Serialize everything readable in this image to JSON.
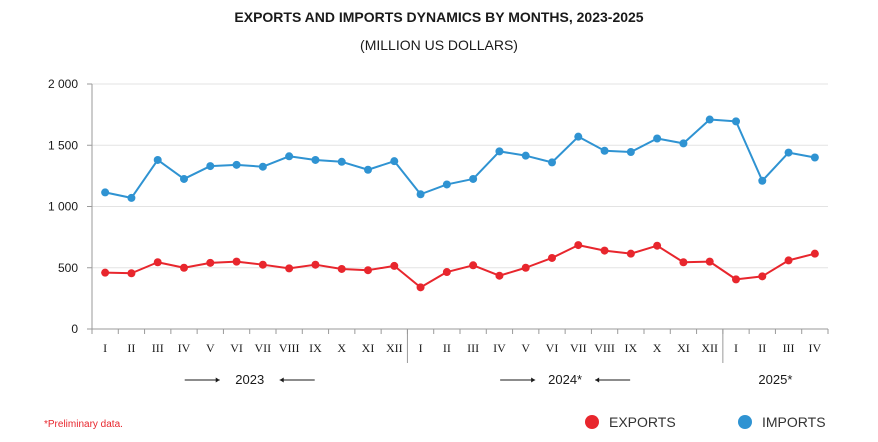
{
  "chart_data": {
    "type": "line",
    "title": "EXPORTS AND IMPORTS DYNAMICS BY MONTHS, 2023-2025",
    "subtitle": "(MILLION US DOLLARS)",
    "categories": [
      "I",
      "II",
      "III",
      "IV",
      "V",
      "VI",
      "VII",
      "VIII",
      "IX",
      "X",
      "XI",
      "XII",
      "I",
      "II",
      "III",
      "IV",
      "V",
      "VI",
      "VII",
      "VIII",
      "IX",
      "X",
      "XI",
      "XII",
      "I",
      "II",
      "III",
      "IV"
    ],
    "year_groups": [
      {
        "label": "2023",
        "start": 0,
        "end": 11
      },
      {
        "label": "2024*",
        "start": 12,
        "end": 23
      },
      {
        "label": "2025*",
        "start": 24,
        "end": 27
      }
    ],
    "series": [
      {
        "name": "EXPORTS",
        "color": "#e8262d",
        "values": [
          460,
          455,
          545,
          500,
          540,
          550,
          525,
          495,
          525,
          490,
          480,
          515,
          340,
          465,
          520,
          435,
          500,
          580,
          685,
          640,
          615,
          680,
          545,
          550,
          405,
          430,
          560,
          615
        ]
      },
      {
        "name": "IMPORTS",
        "color": "#2f93d2",
        "values": [
          1115,
          1070,
          1380,
          1225,
          1330,
          1340,
          1325,
          1410,
          1380,
          1365,
          1300,
          1370,
          1100,
          1180,
          1225,
          1450,
          1415,
          1360,
          1570,
          1455,
          1445,
          1555,
          1515,
          1710,
          1695,
          1210,
          1440,
          1400
        ]
      }
    ],
    "ylim": [
      0,
      2000
    ],
    "yticks": [
      0,
      500,
      1000,
      1500,
      2000
    ],
    "ytick_labels": [
      "0",
      "500",
      "1 000",
      "1 500",
      "2 000"
    ],
    "grid": true,
    "legend_position": "bottom-right",
    "note": "*Preliminary data."
  },
  "colors": {
    "note": "#e8262d"
  }
}
